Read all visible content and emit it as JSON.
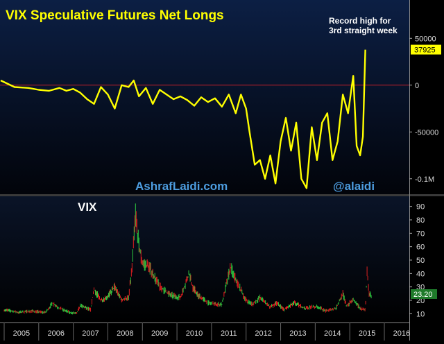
{
  "colors": {
    "background_top": "#0a1a38",
    "background_bottom": "#000000",
    "net_longs_line": "#ffff00",
    "zero_line": "#c0202a",
    "title": "#ffff00",
    "watermark": "#4d9de0",
    "axis_text": "#dddddd",
    "vix_up": "#2ecc40",
    "vix_down": "#e02020",
    "vix_label_bg": "#1f7a2a",
    "cot_label_bg": "#ffff00"
  },
  "chart_data": [
    {
      "type": "line",
      "title": "VIX Speculative Futures Net Longs",
      "annotation": [
        "Record high for",
        "3rd straight week"
      ],
      "watermarks": [
        "AshrafLaidi.com",
        "@alaidi"
      ],
      "yticks": [
        {
          "value": 50000,
          "label": "50000"
        },
        {
          "value": 0,
          "label": "0"
        },
        {
          "value": -50000,
          "label": "-50000"
        },
        {
          "value": -100000,
          "label": "-0.1M"
        }
      ],
      "ylim": [
        -115000,
        85000
      ],
      "last_value_label": "37925",
      "grid": false,
      "series": [
        {
          "x": [
            2004.9,
            2005.3,
            2005.7,
            2006.0,
            2006.3,
            2006.6,
            2006.8,
            2007.0,
            2007.2,
            2007.4,
            2007.6,
            2007.8,
            2008.0,
            2008.2,
            2008.4,
            2008.6,
            2008.75,
            2008.9,
            2009.1,
            2009.3,
            2009.5,
            2009.7,
            2009.9,
            2010.1,
            2010.3,
            2010.5,
            2010.7,
            2010.9,
            2011.1,
            2011.3,
            2011.5,
            2011.7,
            2011.85,
            2012.0,
            2012.1,
            2012.25,
            2012.4,
            2012.55,
            2012.7,
            2012.85,
            2013.0,
            2013.15,
            2013.3,
            2013.45,
            2013.6,
            2013.75,
            2013.9,
            2014.05,
            2014.2,
            2014.35,
            2014.5,
            2014.65,
            2014.8,
            2014.95,
            2015.1,
            2015.2,
            2015.3,
            2015.38,
            2015.45
          ],
          "values": [
            5000,
            -2000,
            -3000,
            -5000,
            -6000,
            -3000,
            -6000,
            -4000,
            -8000,
            -15000,
            -20000,
            -2000,
            -10000,
            -25000,
            0,
            -2000,
            5000,
            -12000,
            -3000,
            -20000,
            -5000,
            -10000,
            -15000,
            -12000,
            -16000,
            -22000,
            -13000,
            -18000,
            -14000,
            -23000,
            -10000,
            -30000,
            -10000,
            -25000,
            -50000,
            -85000,
            -80000,
            -100000,
            -75000,
            -105000,
            -60000,
            -35000,
            -70000,
            -40000,
            -100000,
            -110000,
            -45000,
            -80000,
            -40000,
            -30000,
            -80000,
            -60000,
            -10000,
            -30000,
            10000,
            -65000,
            -75000,
            -55000,
            37925
          ]
        }
      ]
    },
    {
      "type": "candlestick",
      "title": "VIX",
      "xlabels": [
        "2005",
        "2006",
        "2007",
        "2008",
        "2009",
        "2010",
        "2011",
        "2012",
        "2013",
        "2014",
        "2015",
        "2016"
      ],
      "x_range": [
        2005.0,
        2016.0
      ],
      "yticks": [
        10,
        20,
        30,
        40,
        50,
        60,
        70,
        80,
        90
      ],
      "ylim": [
        5,
        95
      ],
      "last_value_label": "23.20",
      "series": [
        {
          "x": [
            2005.0,
            2005.4,
            2005.8,
            2006.2,
            2006.4,
            2006.6,
            2006.9,
            2007.1,
            2007.2,
            2007.5,
            2007.6,
            2007.8,
            2008.0,
            2008.2,
            2008.4,
            2008.6,
            2008.7,
            2008.8,
            2008.9,
            2009.0,
            2009.2,
            2009.5,
            2009.8,
            2010.1,
            2010.35,
            2010.45,
            2010.6,
            2010.9,
            2011.1,
            2011.3,
            2011.55,
            2011.65,
            2011.8,
            2012.0,
            2012.2,
            2012.4,
            2012.7,
            2012.9,
            2013.1,
            2013.4,
            2013.7,
            2013.9,
            2014.1,
            2014.3,
            2014.6,
            2014.8,
            2014.9,
            2015.1,
            2015.3,
            2015.45,
            2015.5,
            2015.55,
            2015.62
          ],
          "values": [
            13,
            11,
            12,
            11,
            18,
            14,
            11,
            10,
            16,
            13,
            28,
            20,
            23,
            30,
            20,
            22,
            45,
            85,
            60,
            48,
            45,
            30,
            24,
            22,
            40,
            30,
            24,
            18,
            17,
            17,
            45,
            38,
            30,
            20,
            17,
            22,
            15,
            18,
            13,
            18,
            14,
            15,
            15,
            12,
            14,
            25,
            16,
            20,
            14,
            13,
            42,
            26,
            23.2
          ]
        }
      ]
    }
  ]
}
